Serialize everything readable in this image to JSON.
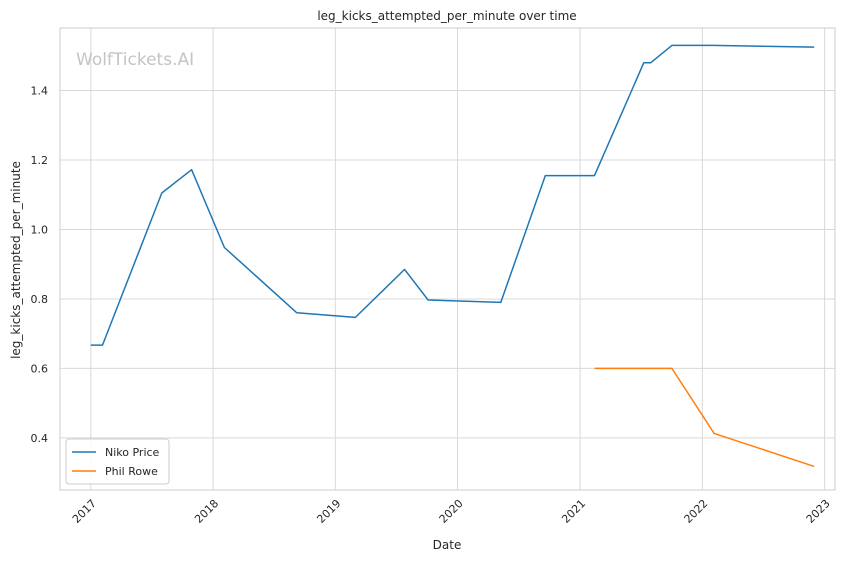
{
  "chart_data": {
    "type": "line",
    "title": "leg_kicks_attempted_per_minute over time",
    "xlabel": "Date",
    "ylabel": "leg_kicks_attempted_per_minute",
    "watermark": "WolfTickets.AI",
    "xlim": [
      "2016-10-01",
      "2023-02-01"
    ],
    "ylim": [
      0.25,
      1.58
    ],
    "x_ticks": [
      "2017",
      "2018",
      "2019",
      "2020",
      "2021",
      "2022",
      "2023"
    ],
    "y_ticks": [
      "0.4",
      "0.6",
      "0.8",
      "1.0",
      "1.2",
      "1.4"
    ],
    "grid": true,
    "legend_position": "lower-left",
    "series": [
      {
        "name": "Niko Price",
        "color": "#1f77b4",
        "points": [
          [
            "2017-01-01",
            0.667
          ],
          [
            "2017-02-05",
            0.667
          ],
          [
            "2017-08-01",
            1.105
          ],
          [
            "2017-10-29",
            1.172
          ],
          [
            "2018-02-04",
            0.948
          ],
          [
            "2018-09-08",
            0.76
          ],
          [
            "2019-03-02",
            0.747
          ],
          [
            "2019-07-27",
            0.885
          ],
          [
            "2019-10-05",
            0.797
          ],
          [
            "2020-05-09",
            0.79
          ],
          [
            "2020-09-19",
            1.155
          ],
          [
            "2021-02-13",
            1.155
          ],
          [
            "2021-07-10",
            1.48
          ],
          [
            "2021-07-31",
            1.48
          ],
          [
            "2021-10-02",
            1.53
          ],
          [
            "2022-02-01",
            1.53
          ],
          [
            "2022-12-01",
            1.525
          ]
        ]
      },
      {
        "name": "Phil Rowe",
        "color": "#ff7f0e",
        "points": [
          [
            "2021-02-13",
            0.6
          ],
          [
            "2021-10-02",
            0.6
          ],
          [
            "2022-02-05",
            0.413
          ],
          [
            "2022-12-01",
            0.318
          ]
        ]
      }
    ]
  }
}
